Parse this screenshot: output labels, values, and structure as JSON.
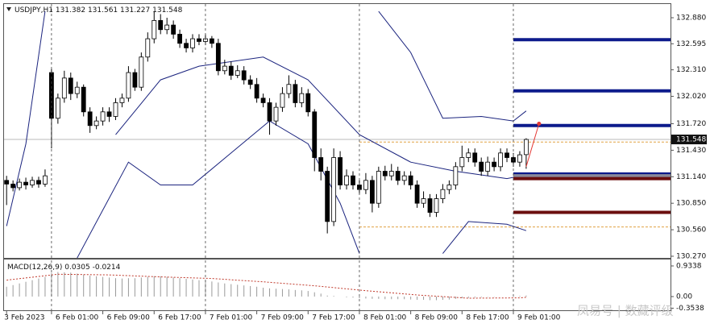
{
  "chart_data": [
    {
      "type": "candlestick",
      "title": "USDJPY,H1",
      "open": [
        131.1,
        131.06,
        131.02,
        131.08,
        131.05,
        131.1,
        131.06,
        132.28,
        131.78,
        132.0,
        132.22,
        132.05,
        132.12,
        131.85,
        131.7,
        131.75,
        131.85,
        131.8,
        131.95,
        132.0,
        132.28,
        132.12,
        132.45,
        132.65,
        132.85,
        132.75,
        132.8,
        132.7,
        132.6,
        132.55,
        132.65,
        132.62,
        132.65,
        132.6,
        132.3,
        132.35,
        132.25,
        132.3,
        132.2,
        132.15,
        132.0,
        131.95,
        131.75,
        131.9,
        132.05,
        132.15,
        131.95,
        132.05,
        131.85,
        131.35,
        131.2,
        130.65,
        131.35,
        131.05,
        131.15,
        131.05,
        131.0,
        131.1,
        130.85,
        131.2,
        131.15,
        131.2,
        131.1,
        131.15,
        131.05,
        130.85,
        130.9,
        130.75,
        130.9,
        131.0,
        131.05,
        131.25,
        131.35,
        131.4,
        131.3,
        131.2,
        131.3,
        131.25,
        131.4,
        131.35,
        131.3,
        131.382
      ],
      "high": [
        131.15,
        131.1,
        131.12,
        131.13,
        131.14,
        131.14,
        131.22,
        132.32,
        132.05,
        132.3,
        132.28,
        132.18,
        132.15,
        131.9,
        131.8,
        131.9,
        131.9,
        132.0,
        132.05,
        132.35,
        132.32,
        132.5,
        132.72,
        132.95,
        132.92,
        132.88,
        132.85,
        132.75,
        132.65,
        132.7,
        132.7,
        132.7,
        132.68,
        132.65,
        132.42,
        132.4,
        132.36,
        132.35,
        132.25,
        132.22,
        132.05,
        132.0,
        131.95,
        132.12,
        132.25,
        132.2,
        132.12,
        132.1,
        131.88,
        131.45,
        131.25,
        131.45,
        131.42,
        131.22,
        131.2,
        131.1,
        131.18,
        131.15,
        131.25,
        131.26,
        131.28,
        131.25,
        131.2,
        131.2,
        131.1,
        130.98,
        130.95,
        130.95,
        131.06,
        131.1,
        131.3,
        131.48,
        131.45,
        131.45,
        131.35,
        131.36,
        131.35,
        131.45,
        131.45,
        131.4,
        131.42,
        131.561
      ],
      "low": [
        130.83,
        130.98,
        130.99,
        131.0,
        131.02,
        131.02,
        131.03,
        131.45,
        131.72,
        131.95,
        131.98,
        132.0,
        131.8,
        131.62,
        131.66,
        131.7,
        131.74,
        131.76,
        131.9,
        131.96,
        132.08,
        132.08,
        132.4,
        132.6,
        132.7,
        132.7,
        132.65,
        132.55,
        132.5,
        132.5,
        132.58,
        132.58,
        132.55,
        132.25,
        132.26,
        132.2,
        132.22,
        132.15,
        132.1,
        131.95,
        131.9,
        131.6,
        131.7,
        131.85,
        132.0,
        131.9,
        131.9,
        131.8,
        131.2,
        131.1,
        130.52,
        130.6,
        131.0,
        131.0,
        131.0,
        130.95,
        130.95,
        130.75,
        130.8,
        131.1,
        131.1,
        131.05,
        131.05,
        131.0,
        130.8,
        130.8,
        130.7,
        130.7,
        130.85,
        130.95,
        131.0,
        131.2,
        131.3,
        131.25,
        131.15,
        131.15,
        131.2,
        131.2,
        131.3,
        131.25,
        131.25,
        131.227
      ],
      "close": [
        131.06,
        131.02,
        131.08,
        131.05,
        131.1,
        131.06,
        131.15,
        131.78,
        132.0,
        132.22,
        132.05,
        132.12,
        131.85,
        131.7,
        131.75,
        131.85,
        131.8,
        131.95,
        132.0,
        132.28,
        132.12,
        132.45,
        132.65,
        132.85,
        132.75,
        132.8,
        132.7,
        132.6,
        132.55,
        132.65,
        132.62,
        132.65,
        132.6,
        132.3,
        132.35,
        132.25,
        132.3,
        132.2,
        132.15,
        132.0,
        131.95,
        131.75,
        131.9,
        132.05,
        132.15,
        131.95,
        132.05,
        131.85,
        131.35,
        131.2,
        130.65,
        131.35,
        131.05,
        131.15,
        131.05,
        131.0,
        131.1,
        130.85,
        131.2,
        131.15,
        131.2,
        131.1,
        131.15,
        131.05,
        130.85,
        130.9,
        130.75,
        130.9,
        131.0,
        131.05,
        131.25,
        131.35,
        131.4,
        131.3,
        131.2,
        131.3,
        131.25,
        131.4,
        131.35,
        131.3,
        131.38,
        131.548
      ],
      "xlim": [
        -0.4,
        103.5
      ],
      "ylim": [
        130.252,
        133.03
      ],
      "yticks": [
        {
          "value": 132.88,
          "label": "132.880"
        },
        {
          "value": 132.595,
          "label": "132.595"
        },
        {
          "value": 132.31,
          "label": "132.310"
        },
        {
          "value": 132.02,
          "label": "132.020"
        },
        {
          "value": 131.72,
          "label": "131.720"
        },
        {
          "value": 131.43,
          "label": "131.430"
        },
        {
          "value": 131.14,
          "label": "131.140"
        },
        {
          "value": 130.85,
          "label": "130.850"
        },
        {
          "value": 130.56,
          "label": "130.560"
        },
        {
          "value": 130.27,
          "label": "130.270"
        }
      ],
      "xticks": [
        {
          "value": 0,
          "label": "3 Feb 2023"
        },
        {
          "value": 7,
          "label": "6 Feb 01:00"
        },
        {
          "value": 15,
          "label": "6 Feb 09:00"
        },
        {
          "value": 23,
          "label": "6 Feb 17:00"
        },
        {
          "value": 31,
          "label": "7 Feb 01:00"
        },
        {
          "value": 39,
          "label": "7 Feb 09:00"
        },
        {
          "value": 47,
          "label": "7 Feb 17:00"
        },
        {
          "value": 55,
          "label": "8 Feb 01:00"
        },
        {
          "value": 63,
          "label": "8 Feb 09:00"
        },
        {
          "value": 71,
          "label": "8 Feb 17:00"
        },
        {
          "value": 79,
          "label": "9 Feb 01:00"
        }
      ],
      "vlines": [
        7,
        31,
        55,
        79
      ],
      "lines": [
        {
          "color": "#1a237e",
          "x": [
            0,
            3,
            6,
            7,
            58,
            63,
            68,
            74,
            79,
            81
          ],
          "values": [
            130.6,
            131.5,
            132.95,
            null,
            132.95,
            132.5,
            131.78,
            131.8,
            131.75,
            131.86
          ]
        },
        {
          "color": "#1a237e",
          "x": [
            11,
            19,
            24,
            29,
            35,
            41,
            47,
            52,
            55,
            56,
            68,
            72,
            78,
            81
          ],
          "values": [
            130.25,
            131.3,
            131.05,
            131.05,
            131.4,
            131.75,
            131.5,
            130.85,
            130.3,
            null,
            130.3,
            130.65,
            130.62,
            130.55
          ]
        },
        {
          "color": "#1a237e",
          "x": [
            17,
            24,
            30,
            40,
            47,
            55,
            63,
            70,
            78,
            81
          ],
          "values": [
            131.6,
            132.2,
            132.35,
            132.45,
            132.2,
            131.6,
            131.3,
            131.2,
            131.12,
            131.16
          ]
        }
      ],
      "levels": [
        {
          "value": 132.64,
          "start": 79,
          "color": "#0d1b8c"
        },
        {
          "value": 132.08,
          "start": 79,
          "color": "#0d1b8c"
        },
        {
          "value": 131.7,
          "start": 79,
          "color": "#0d1b8c"
        },
        {
          "value": 131.17,
          "start": 79,
          "color": "#0d1b8c"
        },
        {
          "value": 131.15,
          "start": 79,
          "color": "#8a8a9a"
        },
        {
          "value": 131.12,
          "start": 79,
          "color": "#6b0f0f"
        },
        {
          "value": 130.75,
          "start": 79,
          "color": "#6b0f0f"
        }
      ],
      "ranges": [
        {
          "value": 131.52,
          "start": 55
        },
        {
          "value": 130.59,
          "start": 55
        }
      ],
      "range_color": "#e0a040",
      "arrow": {
        "x": [
          81,
          83
        ],
        "values": [
          131.25,
          131.72
        ],
        "color": "#e53935"
      }
    },
    {
      "type": "bar",
      "title": "MACD(12,26,9)",
      "color": "#9a9a9a",
      "values": [
        0.3,
        0.35,
        0.4,
        0.45,
        0.5,
        0.55,
        0.6,
        0.72,
        0.75,
        0.74,
        0.73,
        0.7,
        0.67,
        0.64,
        0.62,
        0.6,
        0.58,
        0.56,
        0.55,
        0.56,
        0.56,
        0.58,
        0.6,
        0.62,
        0.62,
        0.6,
        0.58,
        0.56,
        0.54,
        0.52,
        0.5,
        0.48,
        0.46,
        0.43,
        0.4,
        0.38,
        0.36,
        0.34,
        0.32,
        0.3,
        0.27,
        0.25,
        0.24,
        0.23,
        0.22,
        0.2,
        0.19,
        0.17,
        0.13,
        0.09,
        0.03,
        0.02,
        0.0,
        -0.02,
        -0.03,
        -0.05,
        -0.06,
        -0.07,
        -0.07,
        -0.08,
        -0.08,
        -0.08,
        -0.08,
        -0.09,
        -0.1,
        -0.1,
        -0.11,
        -0.11,
        -0.1,
        -0.09,
        -0.07,
        -0.05,
        -0.04,
        -0.03,
        -0.02,
        -0.01,
        -0.01,
        0.0,
        0.0,
        0.01,
        0.02,
        0.0305
      ],
      "signal": {
        "color": "#c0392b",
        "x": [
          0,
          8,
          16,
          24,
          32,
          40,
          48,
          56,
          64,
          72,
          80,
          81
        ],
        "values": [
          0.5,
          0.68,
          0.66,
          0.6,
          0.55,
          0.45,
          0.33,
          0.18,
          0.05,
          -0.05,
          -0.04,
          -0.0214
        ]
      },
      "xlim": [
        -0.4,
        103.5
      ],
      "ylim": [
        -0.418,
        1.13
      ],
      "yticks": [
        0.9338,
        {
          "value": 0,
          "label": "0.00"
        },
        -0.3538
      ]
    }
  ],
  "watermark": "凤易号 | 数藏评级"
}
